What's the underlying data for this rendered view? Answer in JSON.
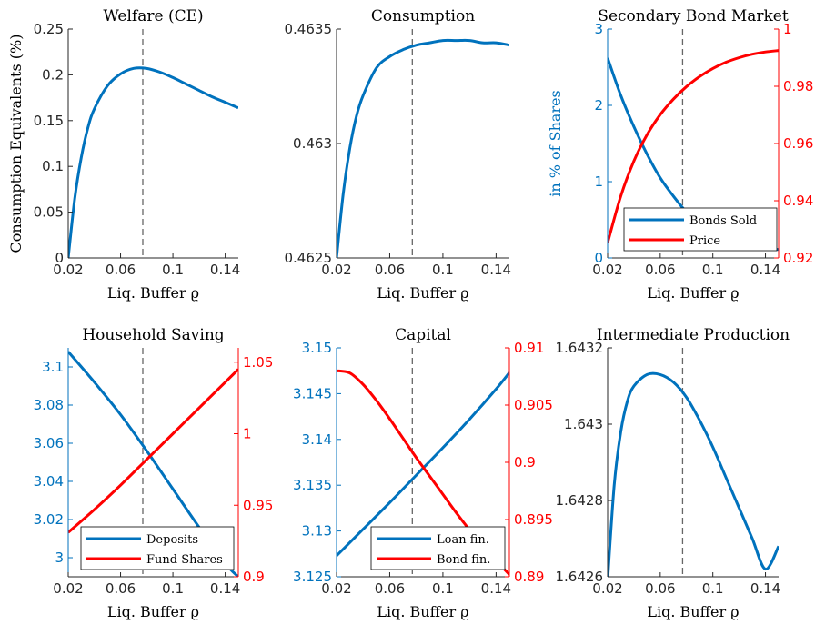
{
  "figure": {
    "colors": {
      "blue": "#0072bd",
      "red": "#ff0000",
      "axis": "#262626",
      "vline": "#666666"
    }
  },
  "chart_data": [
    {
      "type": "line",
      "title": "Welfare (CE)",
      "xlabel": "Liq. Buffer ϱ",
      "ylabel": "Consumption Equivalents (%)",
      "xlim": [
        0.02,
        0.15
      ],
      "ylim": [
        0,
        0.25
      ],
      "xticks": [
        "0.02",
        "0.06",
        "0.1",
        "0.14"
      ],
      "yticks": [
        "0",
        "0.05",
        "0.1",
        "0.15",
        "0.2",
        "0.25"
      ],
      "vline": 0.077,
      "grid": false,
      "series": [
        {
          "color": "blue",
          "axis": "left",
          "x": [
            0.02,
            0.025,
            0.03,
            0.035,
            0.04,
            0.05,
            0.06,
            0.07,
            0.08,
            0.09,
            0.1,
            0.11,
            0.12,
            0.13,
            0.14,
            0.15
          ],
          "y": [
            0,
            0.065,
            0.11,
            0.142,
            0.163,
            0.188,
            0.201,
            0.207,
            0.207,
            0.203,
            0.197,
            0.19,
            0.183,
            0.176,
            0.17,
            0.164
          ]
        }
      ]
    },
    {
      "type": "line",
      "title": "Consumption",
      "xlabel": "Liq. Buffer ϱ",
      "ylabel": "",
      "xlim": [
        0.02,
        0.15
      ],
      "ylim": [
        0.4625,
        0.4635
      ],
      "xticks": [
        "0.02",
        "0.06",
        "0.1",
        "0.14"
      ],
      "yticks": [
        "0.4625",
        "0.463",
        "0.4635"
      ],
      "vline": 0.077,
      "grid": false,
      "series": [
        {
          "color": "blue",
          "axis": "left",
          "x": [
            0.02,
            0.025,
            0.03,
            0.035,
            0.04,
            0.05,
            0.06,
            0.07,
            0.08,
            0.09,
            0.1,
            0.11,
            0.12,
            0.13,
            0.14,
            0.15
          ],
          "y": [
            0.4625,
            0.46278,
            0.46298,
            0.46312,
            0.46321,
            0.46333,
            0.46338,
            0.46341,
            0.46343,
            0.46344,
            0.46345,
            0.46345,
            0.46345,
            0.46344,
            0.46344,
            0.46343
          ]
        }
      ]
    },
    {
      "type": "line",
      "title": "Secondary Bond Market",
      "xlabel": "Liq. Buffer ϱ",
      "ylabel": "in % of Shares",
      "xlim": [
        0.02,
        0.15
      ],
      "ylim": [
        0,
        3
      ],
      "ylim_right": [
        0.92,
        1
      ],
      "xticks": [
        "0.02",
        "0.06",
        "0.1",
        "0.14"
      ],
      "yticks": [
        "0",
        "1",
        "2",
        "3"
      ],
      "yticks_right": [
        "0.92",
        "0.94",
        "0.96",
        "0.98",
        "1"
      ],
      "vline": 0.077,
      "grid": false,
      "legend": {
        "position": "bottom-right",
        "entries": [
          "Bonds Sold",
          "Price"
        ]
      },
      "series": [
        {
          "name": "Bonds Sold",
          "color": "blue",
          "axis": "left",
          "x": [
            0.02,
            0.03,
            0.04,
            0.05,
            0.06,
            0.07,
            0.08,
            0.09,
            0.1,
            0.11,
            0.12,
            0.13,
            0.14,
            0.15
          ],
          "y": [
            2.62,
            2.13,
            1.72,
            1.36,
            1.05,
            0.81,
            0.6,
            0.45,
            0.33,
            0.25,
            0.19,
            0.15,
            0.13,
            0.11
          ]
        },
        {
          "name": "Price",
          "color": "red",
          "axis": "right",
          "x": [
            0.02,
            0.03,
            0.04,
            0.05,
            0.06,
            0.07,
            0.08,
            0.09,
            0.1,
            0.11,
            0.12,
            0.13,
            0.14,
            0.15
          ],
          "y": [
            0.9253,
            0.9416,
            0.9539,
            0.9631,
            0.9701,
            0.9755,
            0.9799,
            0.9834,
            0.9862,
            0.9884,
            0.99,
            0.9912,
            0.992,
            0.9925
          ]
        }
      ]
    },
    {
      "type": "line",
      "title": "Household Saving",
      "xlabel": "Liq. Buffer ϱ",
      "ylabel": "",
      "xlim": [
        0.02,
        0.15
      ],
      "ylim": [
        2.99,
        3.11
      ],
      "ylim_right": [
        0.9,
        1.06
      ],
      "xticks": [
        "0.02",
        "0.06",
        "0.1",
        "0.14"
      ],
      "yticks": [
        "3",
        "3.02",
        "3.04",
        "3.06",
        "3.08",
        "3.1"
      ],
      "yticks_right": [
        "0.9",
        "0.95",
        "1",
        "1.05"
      ],
      "vline": 0.077,
      "grid": false,
      "legend": {
        "position": "bottom-right",
        "entries": [
          "Deposits",
          "Fund Shares"
        ]
      },
      "series": [
        {
          "name": "Deposits",
          "color": "blue",
          "axis": "left",
          "x": [
            0.02,
            0.04,
            0.06,
            0.08,
            0.1,
            0.12,
            0.14,
            0.15
          ],
          "y": [
            3.108,
            3.092,
            3.075,
            3.056,
            3.036,
            3.016,
            2.997,
            2.99
          ]
        },
        {
          "name": "Fund Shares",
          "color": "red",
          "axis": "right",
          "x": [
            0.02,
            0.04,
            0.06,
            0.08,
            0.1,
            0.12,
            0.14,
            0.15
          ],
          "y": [
            0.931,
            0.947,
            0.964,
            0.982,
            1.0,
            1.018,
            1.036,
            1.045
          ]
        }
      ]
    },
    {
      "type": "line",
      "title": "Capital",
      "xlabel": "Liq. Buffer ϱ",
      "ylabel": "",
      "xlim": [
        0.02,
        0.15
      ],
      "ylim": [
        3.125,
        3.15
      ],
      "ylim_right": [
        0.89,
        0.91
      ],
      "xticks": [
        "0.02",
        "0.06",
        "0.1",
        "0.14"
      ],
      "yticks": [
        "3.125",
        "3.13",
        "3.135",
        "3.14",
        "3.145",
        "3.15"
      ],
      "yticks_right": [
        "0.89",
        "0.895",
        "0.9",
        "0.905",
        "0.91"
      ],
      "vline": 0.077,
      "grid": false,
      "legend": {
        "position": "bottom-right",
        "entries": [
          "Loan fin.",
          "Bond fin."
        ]
      },
      "series": [
        {
          "name": "Loan fin.",
          "color": "blue",
          "axis": "left",
          "x": [
            0.02,
            0.04,
            0.06,
            0.08,
            0.1,
            0.12,
            0.14,
            0.15
          ],
          "y": [
            3.1273,
            3.1302,
            3.1331,
            3.1361,
            3.1391,
            3.1422,
            3.1455,
            3.1473
          ]
        },
        {
          "name": "Bond fin.",
          "color": "red",
          "axis": "right",
          "x": [
            0.02,
            0.03,
            0.04,
            0.05,
            0.06,
            0.07,
            0.08,
            0.09,
            0.1,
            0.11,
            0.12,
            0.13,
            0.14,
            0.15
          ],
          "y": [
            0.908,
            0.9078,
            0.9068,
            0.9054,
            0.9038,
            0.9021,
            0.9004,
            0.8988,
            0.8972,
            0.8956,
            0.8941,
            0.8927,
            0.8914,
            0.8902
          ]
        }
      ]
    },
    {
      "type": "line",
      "title": "Intermediate Production",
      "xlabel": "Liq. Buffer ϱ",
      "ylabel": "",
      "xlim": [
        0.02,
        0.15
      ],
      "ylim": [
        1.6426,
        1.6432
      ],
      "xticks": [
        "0.02",
        "0.06",
        "0.1",
        "0.14"
      ],
      "yticks": [
        "1.6426",
        "1.6428",
        "1.643",
        "1.6432"
      ],
      "vline": 0.077,
      "grid": false,
      "series": [
        {
          "color": "blue",
          "axis": "left",
          "x": [
            0.02,
            0.025,
            0.03,
            0.035,
            0.04,
            0.05,
            0.06,
            0.07,
            0.08,
            0.09,
            0.1,
            0.11,
            0.12,
            0.13,
            0.14,
            0.15
          ],
          "y": [
            1.64259,
            1.64284,
            1.64298,
            1.64306,
            1.6431,
            1.64313,
            1.64313,
            1.64311,
            1.64307,
            1.64301,
            1.64294,
            1.64286,
            1.64278,
            1.6427,
            1.64262,
            1.64268
          ]
        }
      ]
    }
  ]
}
